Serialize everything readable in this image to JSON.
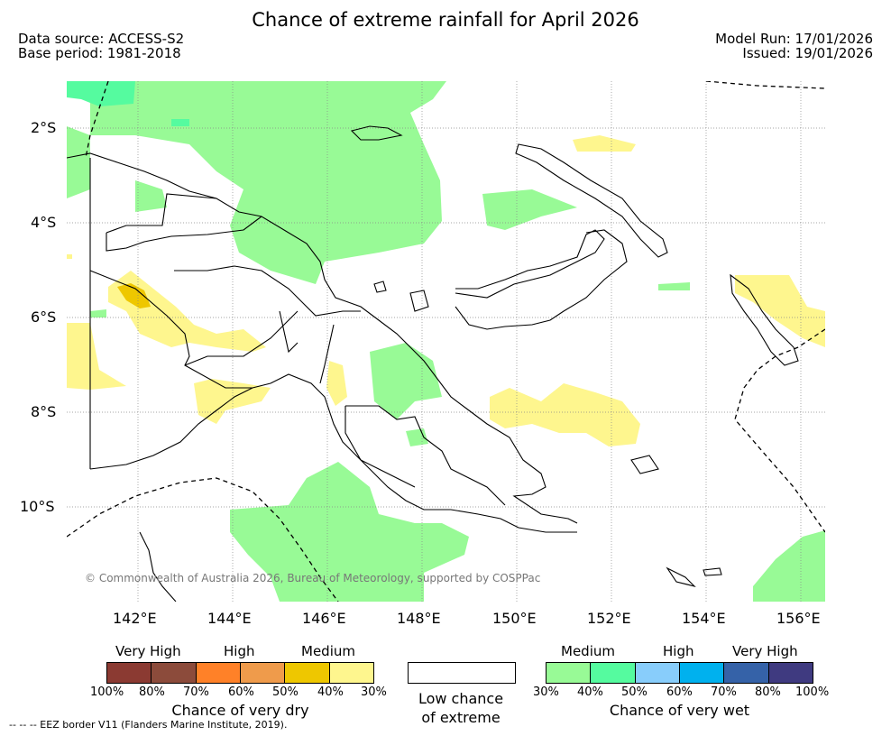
{
  "title": "Chance of extreme rainfall for April 2026",
  "data_source": "Data source: ACCESS-S2",
  "base_period": "Base period: 1981-2018",
  "model_run": "Model Run: 17/01/2026",
  "issued": "Issued: 19/01/2026",
  "lat_labels": [
    "2°S",
    "4°S",
    "6°S",
    "8°S",
    "10°S"
  ],
  "lon_labels": [
    "142°E",
    "144°E",
    "146°E",
    "148°E",
    "150°E",
    "152°E",
    "154°E",
    "156°E"
  ],
  "copyright": "© Commonwealth of Australia 2026, Bureau of Meteorology, supported by COSPPac",
  "legend": {
    "dry": {
      "categories": [
        "Very High",
        "High",
        "Medium"
      ],
      "colors": [
        "#8b3a32",
        "#8c4b3b",
        "#ff8128",
        "#ef9b4b",
        "#eec700",
        "#fef68e"
      ],
      "ticks": [
        "100%",
        "80%",
        "70%",
        "60%",
        "50%",
        "40%",
        "30%"
      ],
      "title": "Chance of very dry"
    },
    "low": {
      "title_line1": "Low chance",
      "title_line2": "of extreme",
      "color": "#ffffff"
    },
    "wet": {
      "categories": [
        "Medium",
        "High",
        "Very High"
      ],
      "colors": [
        "#98fa96",
        "#55fb9f",
        "#88cdfb",
        "#00b1ee",
        "#3562a8",
        "#3f3a80"
      ],
      "ticks": [
        "30%",
        "40%",
        "50%",
        "60%",
        "70%",
        "80%",
        "100%"
      ],
      "title": "Chance of very wet"
    }
  },
  "footnote": "--  --  -- EEZ border V11 (Flanders Marine Institute, 2019)."
}
